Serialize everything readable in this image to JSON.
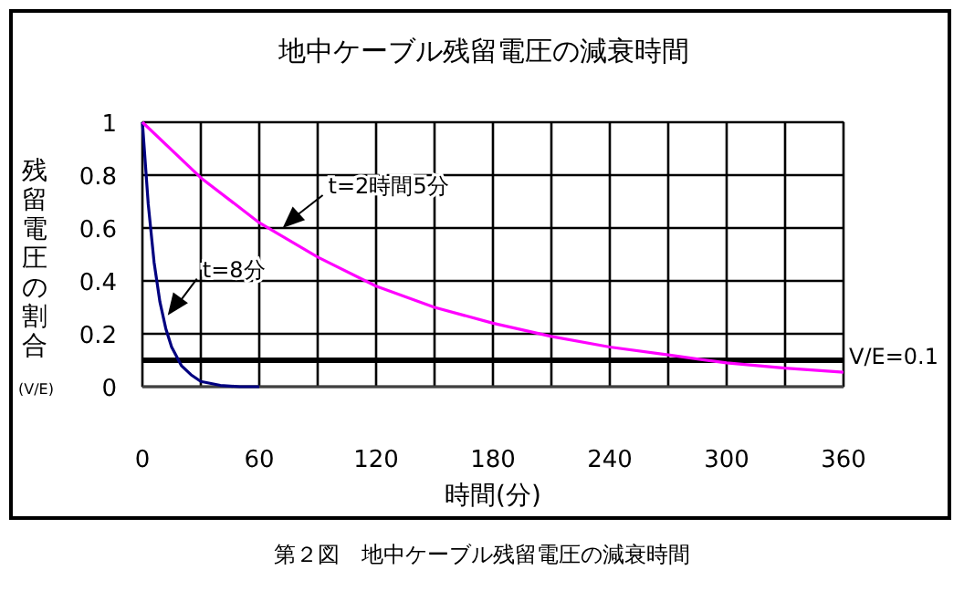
{
  "chart_data": {
    "type": "line",
    "title": "地中ケーブル残留電圧の減衰時間",
    "xlabel": "時間(分)",
    "ylabel": "残留電圧の割合",
    "series": [
      {
        "color": "#000080",
        "x": [
          0,
          3,
          6,
          9,
          12,
          15,
          20,
          25,
          30,
          40,
          50,
          60
        ],
        "values": [
          1,
          0.69,
          0.47,
          0.32,
          0.22,
          0.15,
          0.08,
          0.045,
          0.02,
          0.005,
          0,
          0
        ]
      },
      {
        "color": "#ff00ff",
        "x": [
          0,
          30,
          60,
          90,
          120,
          150,
          180,
          210,
          240,
          270,
          300,
          330,
          360
        ],
        "values": [
          1,
          0.79,
          0.62,
          0.49,
          0.38,
          0.3,
          0.24,
          0.19,
          0.15,
          0.12,
          0.09,
          0.07,
          0.055
        ]
      }
    ],
    "xlim": [
      0,
      360
    ],
    "ylim": [
      0,
      1
    ],
    "xticks": [
      0,
      {
        "value": 30,
        "label": null
      },
      60,
      {
        "value": 90,
        "label": null
      },
      120,
      {
        "value": 150,
        "label": null
      },
      180,
      {
        "value": 210,
        "label": null
      },
      240,
      {
        "value": 270,
        "label": null
      },
      300,
      {
        "value": 330,
        "label": null
      },
      360
    ],
    "yticks": [
      0,
      0.2,
      0.4,
      0.6,
      0.8,
      1
    ],
    "ref_lines": [
      {
        "axis": "y",
        "value": 0.1,
        "label": "V/E=0.1",
        "color": "#000000"
      }
    ],
    "annotations": [
      {
        "text": "t=2時間5分",
        "x": 72,
        "y": 0.6
      },
      {
        "text": "t=8分",
        "x": 13,
        "y": 0.27
      },
      "(V/E)",
      "第２図　地中ケーブル残留電圧の減衰時間"
    ],
    "grid": true,
    "marker": "none",
    "line_style": "solid"
  }
}
